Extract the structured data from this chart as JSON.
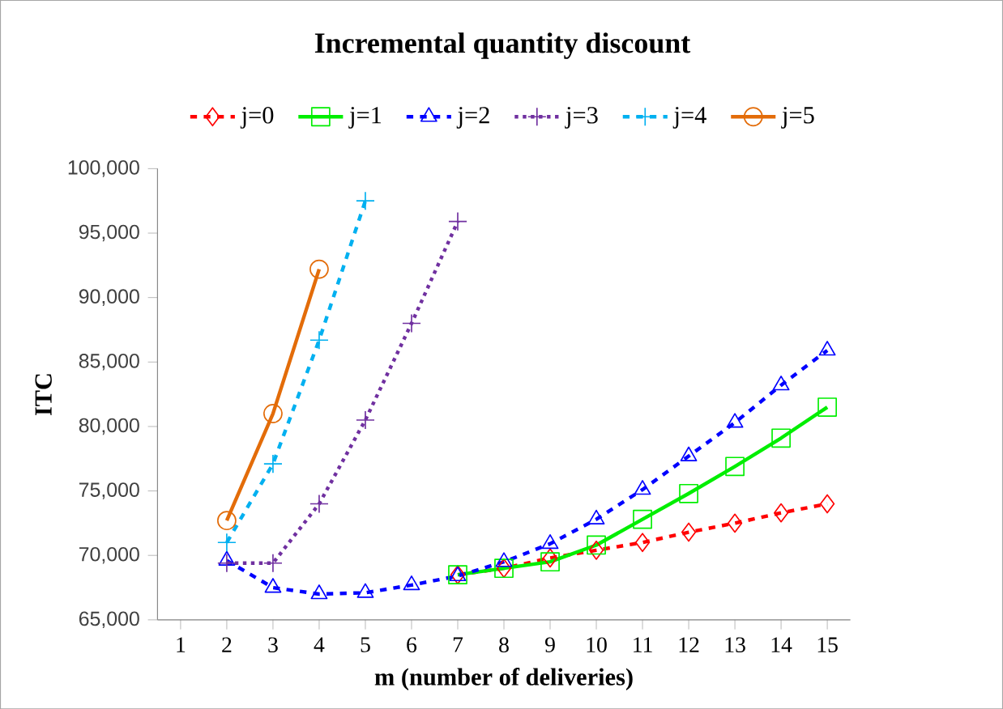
{
  "chart_data": {
    "type": "line",
    "title": "Incremental quantity discount",
    "xlabel": "m (number of deliveries)",
    "ylabel": "ITC",
    "categories": [
      "1",
      "2",
      "3",
      "4",
      "5",
      "6",
      "7",
      "8",
      "9",
      "10",
      "11",
      "12",
      "13",
      "14",
      "15"
    ],
    "ylim": [
      65000,
      100000
    ],
    "yticks": [
      {
        "value": 65000,
        "label": "65,000"
      },
      {
        "value": 70000,
        "label": "70,000"
      },
      {
        "value": 75000,
        "label": "75,000"
      },
      {
        "value": 80000,
        "label": "80,000"
      },
      {
        "value": 85000,
        "label": "85,000"
      },
      {
        "value": 90000,
        "label": "90,000"
      },
      {
        "value": 95000,
        "label": "95,000"
      },
      {
        "value": 100000,
        "label": "100,000"
      }
    ],
    "grid": false,
    "legend": "top",
    "series": [
      {
        "name": "j=0",
        "color": "#ff0000",
        "marker": "diamond",
        "line_style": "dashed",
        "values": [
          null,
          null,
          null,
          null,
          null,
          null,
          68500,
          69000,
          69800,
          70400,
          71000,
          71800,
          72500,
          73300,
          74000
        ]
      },
      {
        "name": "j=1",
        "color": "#00ee00",
        "marker": "square",
        "line_style": "solid",
        "values": [
          null,
          null,
          null,
          null,
          null,
          null,
          68500,
          69000,
          69500,
          70800,
          72800,
          74800,
          76900,
          79100,
          81500
        ]
      },
      {
        "name": "j=2",
        "color": "#0000ff",
        "marker": "triangle",
        "line_style": "dashed",
        "values": [
          null,
          69600,
          67500,
          67000,
          67100,
          67700,
          68400,
          69500,
          70900,
          72800,
          75100,
          77700,
          80300,
          83200,
          85900
        ]
      },
      {
        "name": "j=3",
        "color": "#7030a0",
        "marker": "cross",
        "line_style": "dotted",
        "values": [
          null,
          69400,
          69400,
          74000,
          80500,
          88000,
          95900,
          null,
          null,
          null,
          null,
          null,
          null,
          null,
          null
        ]
      },
      {
        "name": "j=4",
        "color": "#00b0f0",
        "marker": "cross",
        "line_style": "dashed",
        "values": [
          null,
          71000,
          77100,
          86700,
          97500,
          null,
          null,
          null,
          null,
          null,
          null,
          null,
          null,
          null,
          null
        ]
      },
      {
        "name": "j=5",
        "color": "#e36c09",
        "marker": "circle",
        "line_style": "solid",
        "values": [
          null,
          72700,
          81000,
          92200,
          null,
          null,
          null,
          null,
          null,
          null,
          null,
          null,
          null,
          null,
          null
        ]
      }
    ]
  }
}
